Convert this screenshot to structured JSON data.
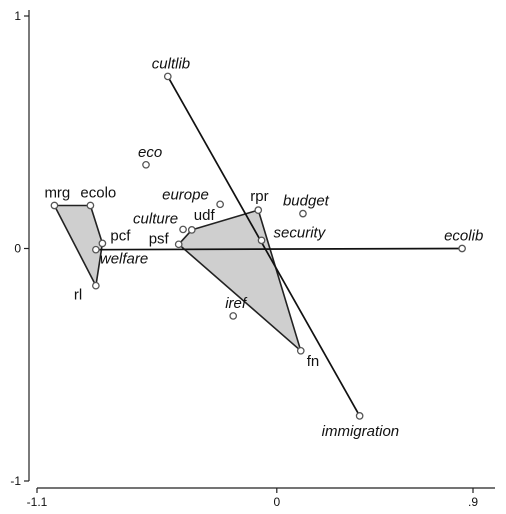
{
  "chart_data": {
    "type": "scatter",
    "title": "",
    "xlabel": "",
    "ylabel": "",
    "xlim": [
      -1.1,
      0.9
    ],
    "ylim": [
      -1.0,
      1.0
    ],
    "x_ticks": [
      -1.1,
      0,
      0.9
    ],
    "x_tick_labels": [
      "-1.1",
      "0",
      ".9"
    ],
    "y_ticks": [
      -1,
      0,
      1
    ],
    "y_tick_labels": [
      "-1",
      "0",
      "1"
    ],
    "grid": false,
    "points": [
      {
        "label": "mrg",
        "x": -1.02,
        "y": 0.185,
        "italic": false
      },
      {
        "label": "ecolo",
        "x": -0.855,
        "y": 0.185,
        "italic": false
      },
      {
        "label": "pcf",
        "x": -0.8,
        "y": 0.022,
        "italic": false
      },
      {
        "label": "rl",
        "x": -0.83,
        "y": -0.16,
        "italic": false
      },
      {
        "label": "psf",
        "x": -0.45,
        "y": 0.018,
        "italic": false
      },
      {
        "label": "udf",
        "x": -0.39,
        "y": 0.08,
        "italic": false
      },
      {
        "label": "rpr",
        "x": -0.085,
        "y": 0.165,
        "italic": false
      },
      {
        "label": "fn",
        "x": 0.11,
        "y": -0.44,
        "italic": false
      },
      {
        "label": "eco",
        "x": -0.6,
        "y": 0.36,
        "italic": true
      },
      {
        "label": "europe",
        "x": -0.26,
        "y": 0.19,
        "italic": true
      },
      {
        "label": "culture",
        "x": -0.43,
        "y": 0.082,
        "italic": true
      },
      {
        "label": "budget",
        "x": 0.12,
        "y": 0.15,
        "italic": true
      },
      {
        "label": "security",
        "x": -0.07,
        "y": 0.035,
        "italic": true
      },
      {
        "label": "iref",
        "x": -0.2,
        "y": -0.29,
        "italic": true
      }
    ],
    "vectors": [
      {
        "label": "cultlib",
        "from": [
          -0.5,
          0.74
        ],
        "to": [
          0.38,
          -0.72
        ],
        "italic": true
      },
      {
        "label": "immigration",
        "from": [
          -0.5,
          0.74
        ],
        "to": [
          0.38,
          -0.72
        ],
        "italic": true
      },
      {
        "label": "welfare",
        "from": [
          -0.83,
          -0.005
        ],
        "to": [
          0.85,
          0.0
        ],
        "italic": true
      },
      {
        "label": "ecolib",
        "from": [
          -0.83,
          -0.005
        ],
        "to": [
          0.85,
          0.0
        ],
        "italic": true
      }
    ],
    "hulls": [
      {
        "members": [
          "mrg",
          "ecolo",
          "pcf",
          "rl"
        ]
      },
      {
        "members": [
          "psf",
          "udf",
          "rpr",
          "fn"
        ]
      }
    ]
  }
}
